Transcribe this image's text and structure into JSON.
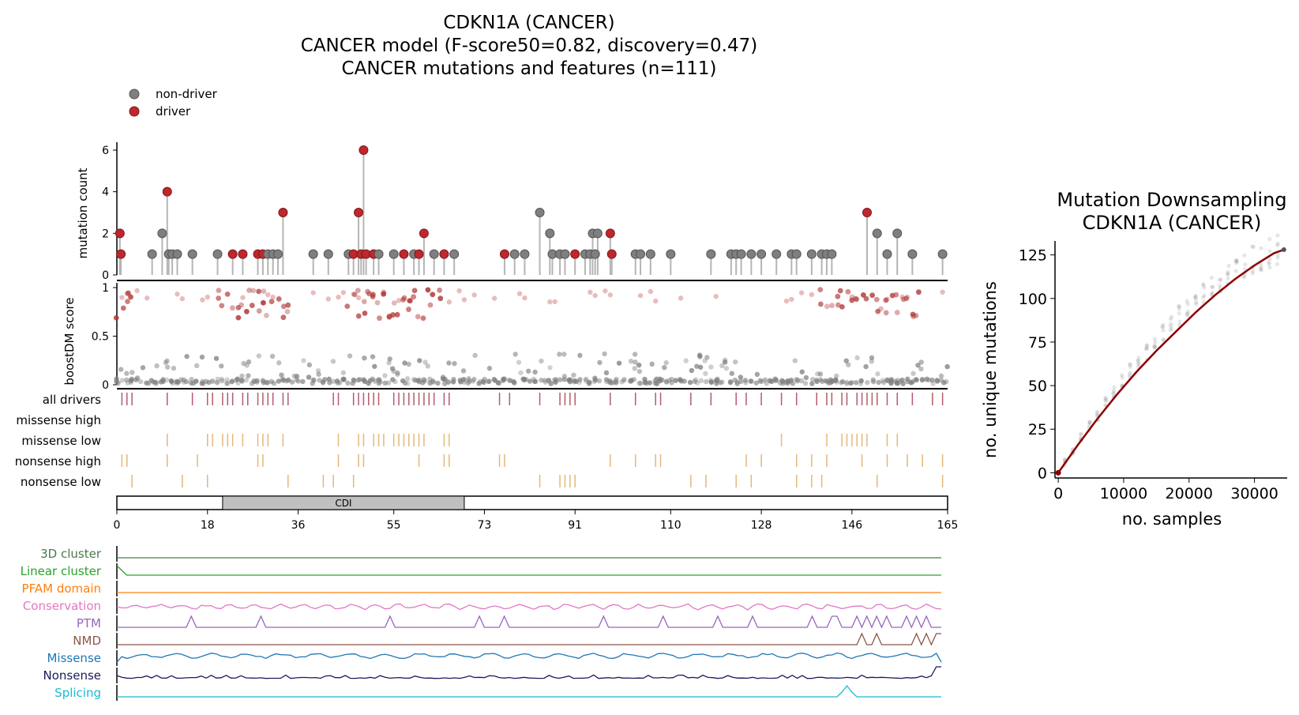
{
  "title": {
    "line1": "CDKN1A (CANCER)",
    "line2": "CANCER model (F-score50=0.82, discovery=0.47)",
    "line3": "CANCER mutations and features (n=111)"
  },
  "legend": {
    "items": [
      {
        "label": "non-driver",
        "color": "#7f7f7f"
      },
      {
        "label": "driver",
        "color": "#c0272d"
      }
    ]
  },
  "colors": {
    "driver": "#c0272d",
    "non_driver": "#7f7f7f",
    "stem": "#b5b5b5",
    "all_drivers_tick": "#b45a6a",
    "consequence_tick": "#e3b87a",
    "domain_fill": "#c0c0c0",
    "downsampling_line": "#8b0000"
  },
  "lollipop": {
    "ylabel": "mutation count",
    "yticks": [
      "0",
      "2",
      "4",
      "6"
    ],
    "ylim": [
      0,
      6.3
    ]
  },
  "boost": {
    "ylabel": "boostDM score",
    "yticks": [
      "0",
      "0.5",
      "1"
    ],
    "ylim": [
      0,
      1.05
    ]
  },
  "tracks": {
    "labels": [
      "all drivers",
      "missense high",
      "missense low",
      "nonsense high",
      "nonsense low"
    ]
  },
  "protein": {
    "domain_label": "CDI",
    "domain_range": [
      21,
      69
    ],
    "length": 165,
    "xticks": [
      "0",
      "18",
      "36",
      "55",
      "73",
      "91",
      "110",
      "128",
      "146",
      "165"
    ]
  },
  "features": {
    "labels": [
      "3D cluster",
      "Linear cluster",
      "PFAM domain",
      "Conservation",
      "PTM",
      "NMD",
      "Missense",
      "Nonsense",
      "Splicing"
    ],
    "colors": [
      "#4a7a4a",
      "#2ca02c",
      "#ff7f0e",
      "#e377c2",
      "#9467bd",
      "#8c564b",
      "#1f77b4",
      "#1a1a5e",
      "#17becf"
    ]
  },
  "downsampling": {
    "title_line1": "Mutation Downsampling",
    "title_line2": "CDKN1A (CANCER)",
    "xlabel": "no. samples",
    "ylabel": "no. unique mutations",
    "xticks": [
      "0",
      "10000",
      "20000",
      "30000"
    ],
    "yticks": [
      "0",
      "25",
      "50",
      "75",
      "100",
      "125"
    ],
    "xlim": [
      -500,
      35000
    ],
    "ylim": [
      -3,
      133
    ]
  },
  "chart_data": [
    {
      "type": "scatter",
      "name": "lollipop",
      "xlabel": "",
      "ylabel": "mutation count",
      "points": [
        {
          "x": 0.6,
          "y": 2,
          "driver": true
        },
        {
          "x": 0.8,
          "y": 1,
          "driver": true
        },
        {
          "x": 7,
          "y": 1,
          "driver": false
        },
        {
          "x": 9,
          "y": 2,
          "driver": false
        },
        {
          "x": 10,
          "y": 4,
          "driver": true
        },
        {
          "x": 10.3,
          "y": 1,
          "driver": false
        },
        {
          "x": 11,
          "y": 1,
          "driver": false
        },
        {
          "x": 12,
          "y": 1,
          "driver": false
        },
        {
          "x": 15,
          "y": 1,
          "driver": false
        },
        {
          "x": 20,
          "y": 1,
          "driver": false
        },
        {
          "x": 23,
          "y": 1,
          "driver": true
        },
        {
          "x": 25,
          "y": 1,
          "driver": true
        },
        {
          "x": 28,
          "y": 1,
          "driver": true
        },
        {
          "x": 29,
          "y": 1,
          "driver": true
        },
        {
          "x": 30,
          "y": 1,
          "driver": false
        },
        {
          "x": 31,
          "y": 1,
          "driver": false
        },
        {
          "x": 32,
          "y": 1,
          "driver": false
        },
        {
          "x": 33,
          "y": 3,
          "driver": true
        },
        {
          "x": 39,
          "y": 1,
          "driver": false
        },
        {
          "x": 42,
          "y": 1,
          "driver": false
        },
        {
          "x": 46,
          "y": 1,
          "driver": false
        },
        {
          "x": 47,
          "y": 1,
          "driver": true
        },
        {
          "x": 48,
          "y": 3,
          "driver": true
        },
        {
          "x": 48.5,
          "y": 1,
          "driver": true
        },
        {
          "x": 49,
          "y": 6,
          "driver": true
        },
        {
          "x": 49.5,
          "y": 1,
          "driver": true
        },
        {
          "x": 51,
          "y": 1,
          "driver": true
        },
        {
          "x": 52,
          "y": 1,
          "driver": false
        },
        {
          "x": 55,
          "y": 1,
          "driver": false
        },
        {
          "x": 57,
          "y": 1,
          "driver": true
        },
        {
          "x": 59,
          "y": 1,
          "driver": false
        },
        {
          "x": 60,
          "y": 1,
          "driver": true
        },
        {
          "x": 61,
          "y": 2,
          "driver": true
        },
        {
          "x": 63,
          "y": 1,
          "driver": false
        },
        {
          "x": 65,
          "y": 1,
          "driver": true
        },
        {
          "x": 67,
          "y": 1,
          "driver": false
        },
        {
          "x": 77,
          "y": 1,
          "driver": true
        },
        {
          "x": 79,
          "y": 1,
          "driver": false
        },
        {
          "x": 81,
          "y": 1,
          "driver": false
        },
        {
          "x": 84,
          "y": 3,
          "driver": false
        },
        {
          "x": 86,
          "y": 2,
          "driver": false
        },
        {
          "x": 86.5,
          "y": 1,
          "driver": false
        },
        {
          "x": 88,
          "y": 1,
          "driver": false
        },
        {
          "x": 89,
          "y": 1,
          "driver": false
        },
        {
          "x": 91,
          "y": 1,
          "driver": true
        },
        {
          "x": 93,
          "y": 1,
          "driver": false
        },
        {
          "x": 94,
          "y": 1,
          "driver": false
        },
        {
          "x": 94.5,
          "y": 2,
          "driver": false
        },
        {
          "x": 95,
          "y": 1,
          "driver": false
        },
        {
          "x": 95.5,
          "y": 2,
          "driver": false
        },
        {
          "x": 98,
          "y": 2,
          "driver": true
        },
        {
          "x": 98.3,
          "y": 1,
          "driver": true
        },
        {
          "x": 103,
          "y": 1,
          "driver": false
        },
        {
          "x": 104,
          "y": 1,
          "driver": false
        },
        {
          "x": 106,
          "y": 1,
          "driver": false
        },
        {
          "x": 110,
          "y": 1,
          "driver": false
        },
        {
          "x": 118,
          "y": 1,
          "driver": false
        },
        {
          "x": 122,
          "y": 1,
          "driver": false
        },
        {
          "x": 123,
          "y": 1,
          "driver": false
        },
        {
          "x": 124,
          "y": 1,
          "driver": false
        },
        {
          "x": 126,
          "y": 1,
          "driver": false
        },
        {
          "x": 128,
          "y": 1,
          "driver": false
        },
        {
          "x": 131,
          "y": 1,
          "driver": false
        },
        {
          "x": 134,
          "y": 1,
          "driver": false
        },
        {
          "x": 135,
          "y": 1,
          "driver": false
        },
        {
          "x": 138,
          "y": 1,
          "driver": false
        },
        {
          "x": 140,
          "y": 1,
          "driver": false
        },
        {
          "x": 141,
          "y": 1,
          "driver": false
        },
        {
          "x": 142,
          "y": 1,
          "driver": false
        },
        {
          "x": 149,
          "y": 3,
          "driver": true
        },
        {
          "x": 151,
          "y": 2,
          "driver": false
        },
        {
          "x": 153,
          "y": 1,
          "driver": false
        },
        {
          "x": 155,
          "y": 2,
          "driver": false
        },
        {
          "x": 158,
          "y": 1,
          "driver": false
        },
        {
          "x": 164,
          "y": 1,
          "driver": false
        }
      ]
    },
    {
      "type": "line",
      "name": "downsampling",
      "title": "Mutation Downsampling CDKN1A (CANCER)",
      "xlabel": "no. samples",
      "ylabel": "no. unique mutations",
      "x": [
        0,
        3000,
        6000,
        9000,
        12000,
        15000,
        18000,
        21000,
        24000,
        27000,
        30000,
        33000,
        34500
      ],
      "y": [
        0,
        16,
        31,
        45,
        58,
        70,
        81,
        92,
        102,
        111,
        119,
        126,
        128
      ]
    }
  ]
}
